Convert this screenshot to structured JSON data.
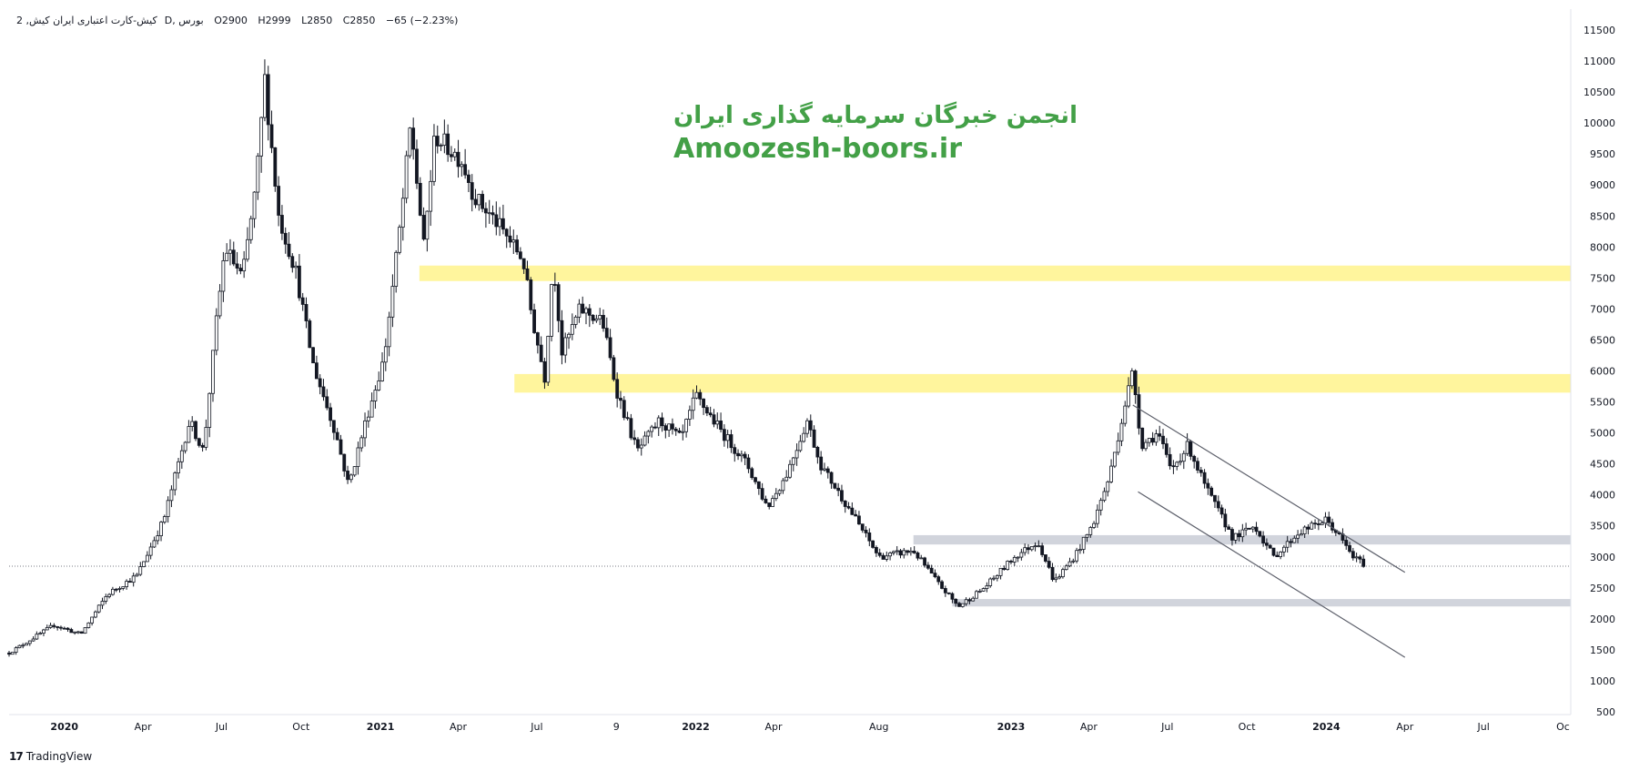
{
  "header": {
    "symbol": "کیش-کارت اعتباری ایران کیش, 2",
    "suffix": "D, بورس",
    "open": "O2900",
    "high": "H2999",
    "low": "L2850",
    "close": "C2850",
    "change": "−65 (−2.23%)"
  },
  "watermark": {
    "line1": "انجمن خبرگان سرمایه گذاری ایران",
    "line2": "Amoozesh-boors.ir",
    "color": "#43a047"
  },
  "brand": {
    "logo": "17",
    "name": "TradingView"
  },
  "chart_data": {
    "type": "candlestick",
    "ylim": [
      500,
      11500
    ],
    "y_ticks": [
      500,
      1000,
      1500,
      2000,
      2500,
      3000,
      3500,
      4000,
      4500,
      5000,
      5500,
      6000,
      6500,
      7000,
      7500,
      8000,
      8500,
      9000,
      9500,
      10000,
      10500,
      11000,
      11500
    ],
    "x_range": [
      "2019-10-29",
      "2024-10-10"
    ],
    "x_ticks": [
      {
        "date": "2020-01-01",
        "label": "2020",
        "bold": true
      },
      {
        "date": "2020-04-01",
        "label": "Apr"
      },
      {
        "date": "2020-07-01",
        "label": "Jul"
      },
      {
        "date": "2020-10-01",
        "label": "Oct"
      },
      {
        "date": "2021-01-01",
        "label": "2021",
        "bold": true
      },
      {
        "date": "2021-04-01",
        "label": "Apr"
      },
      {
        "date": "2021-07-01",
        "label": "Jul"
      },
      {
        "date": "2021-10-01",
        "label": "9"
      },
      {
        "date": "2022-01-01",
        "label": "2022",
        "bold": true
      },
      {
        "date": "2022-04-01",
        "label": "Apr"
      },
      {
        "date": "2022-08-01",
        "label": "Aug"
      },
      {
        "date": "2023-01-01",
        "label": "2023",
        "bold": true
      },
      {
        "date": "2023-04-01",
        "label": "Apr"
      },
      {
        "date": "2023-07-01",
        "label": "Jul"
      },
      {
        "date": "2023-10-01",
        "label": "Oct"
      },
      {
        "date": "2024-01-01",
        "label": "2024",
        "bold": true
      },
      {
        "date": "2024-04-01",
        "label": "Apr"
      },
      {
        "date": "2024-07-01",
        "label": "Jul"
      },
      {
        "date": "2024-10-01",
        "label": "Oc"
      }
    ],
    "price_path": [
      [
        "2019-10-29",
        1450
      ],
      [
        "2019-12-20",
        1900
      ],
      [
        "2020-01-20",
        1750
      ],
      [
        "2020-02-20",
        2400
      ],
      [
        "2020-03-25",
        2700
      ],
      [
        "2020-04-25",
        3600
      ],
      [
        "2020-05-25",
        5200
      ],
      [
        "2020-06-10",
        4700
      ],
      [
        "2020-06-25",
        6800
      ],
      [
        "2020-07-05",
        8000
      ],
      [
        "2020-07-25",
        7500
      ],
      [
        "2020-08-10",
        9000
      ],
      [
        "2020-08-20",
        10700
      ],
      [
        "2020-09-05",
        8500
      ],
      [
        "2020-09-25",
        7600
      ],
      [
        "2020-10-15",
        6100
      ],
      [
        "2020-11-10",
        5000
      ],
      [
        "2020-11-25",
        4150
      ],
      [
        "2020-12-15",
        5200
      ],
      [
        "2021-01-05",
        6200
      ],
      [
        "2021-01-25",
        8500
      ],
      [
        "2021-02-05",
        10000
      ],
      [
        "2021-02-20",
        8000
      ],
      [
        "2021-03-05",
        9800
      ],
      [
        "2021-04-05",
        9400
      ],
      [
        "2021-04-20",
        8800
      ],
      [
        "2021-05-15",
        8400
      ],
      [
        "2021-06-15",
        7800
      ],
      [
        "2021-06-25",
        6900
      ],
      [
        "2021-07-10",
        5900
      ],
      [
        "2021-07-20",
        7800
      ],
      [
        "2021-07-30",
        6300
      ],
      [
        "2021-08-20",
        7000
      ],
      [
        "2021-09-15",
        6800
      ],
      [
        "2021-10-01",
        5700
      ],
      [
        "2021-10-25",
        4700
      ],
      [
        "2021-11-20",
        5200
      ],
      [
        "2021-12-15",
        4900
      ],
      [
        "2022-01-01",
        5600
      ],
      [
        "2022-02-01",
        5000
      ],
      [
        "2022-03-01",
        4500
      ],
      [
        "2022-03-25",
        3800
      ],
      [
        "2022-04-15",
        4300
      ],
      [
        "2022-05-10",
        5200
      ],
      [
        "2022-05-25",
        4500
      ],
      [
        "2022-07-01",
        3700
      ],
      [
        "2022-08-01",
        3000
      ],
      [
        "2022-09-10",
        3100
      ],
      [
        "2022-10-10",
        2550
      ],
      [
        "2022-11-01",
        2200
      ],
      [
        "2022-12-01",
        2500
      ],
      [
        "2023-01-05",
        3000
      ],
      [
        "2023-02-01",
        3250
      ],
      [
        "2023-02-20",
        2600
      ],
      [
        "2023-03-15",
        3000
      ],
      [
        "2023-04-05",
        3500
      ],
      [
        "2023-04-25",
        4300
      ],
      [
        "2023-05-15",
        5600
      ],
      [
        "2023-05-22",
        6000
      ],
      [
        "2023-06-01",
        4800
      ],
      [
        "2023-06-20",
        5000
      ],
      [
        "2023-07-05",
        4400
      ],
      [
        "2023-07-25",
        4800
      ],
      [
        "2023-08-15",
        4100
      ],
      [
        "2023-09-15",
        3300
      ],
      [
        "2023-10-10",
        3500
      ],
      [
        "2023-11-01",
        3000
      ],
      [
        "2023-12-01",
        3400
      ],
      [
        "2024-01-01",
        3600
      ],
      [
        "2024-01-15",
        3350
      ],
      [
        "2024-02-01",
        3000
      ],
      [
        "2024-02-15",
        2870
      ]
    ],
    "last_price": 2850,
    "zones": [
      {
        "x1": "2021-02-15",
        "x2": "2024-10-10",
        "y1": 7450,
        "y2": 7700,
        "color": "#fff59d"
      },
      {
        "x1": "2021-06-05",
        "x2": "2024-10-10",
        "y1": 5650,
        "y2": 5950,
        "color": "#fff59d"
      },
      {
        "x1": "2022-09-10",
        "x2": "2024-10-10",
        "y1": 3200,
        "y2": 3350,
        "color": "#d1d4dc"
      },
      {
        "x1": "2022-10-25",
        "x2": "2024-10-10",
        "y1": 2200,
        "y2": 2320,
        "color": "#d1d4dc"
      }
    ],
    "trendlines": [
      {
        "from": [
          "2023-05-22",
          5450
        ],
        "to": [
          "2024-04-01",
          2750
        ]
      },
      {
        "from": [
          "2023-05-28",
          4050
        ],
        "to": [
          "2024-04-01",
          1380
        ]
      }
    ]
  }
}
